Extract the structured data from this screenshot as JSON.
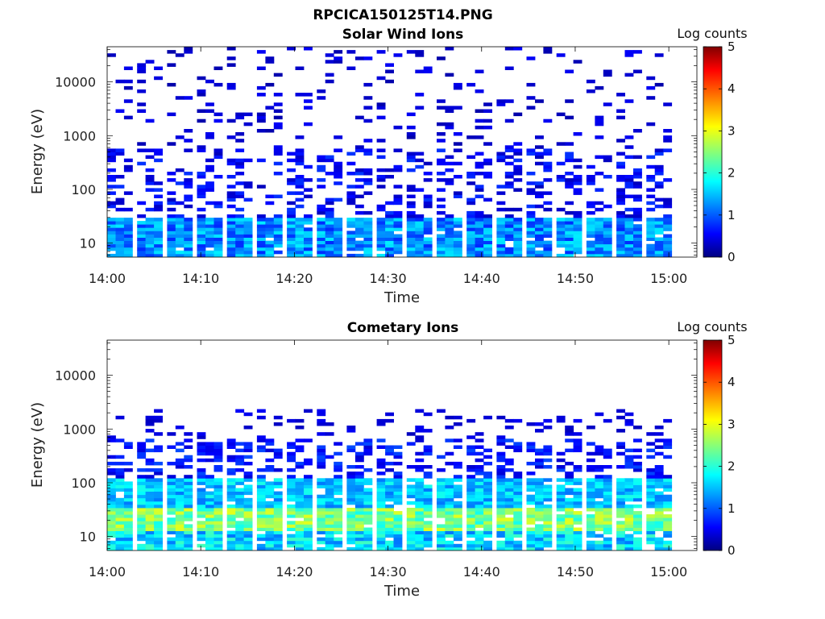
{
  "figure_title": "RPCICA150125T14.PNG",
  "chart_data": [
    {
      "id": "solar",
      "type": "heatmap",
      "title": "Solar Wind Ions",
      "xlabel": "Time",
      "ylabel": "Energy (eV)",
      "x_ticks": [
        "14:00",
        "14:10",
        "14:20",
        "14:30",
        "14:40",
        "14:50",
        "15:00"
      ],
      "x_range_minutes": [
        0,
        63
      ],
      "y_scale": "log",
      "y_range_eV": [
        5.5,
        45000
      ],
      "y_ticks": [
        "10",
        "100",
        "1000",
        "10000"
      ],
      "colorbar": {
        "label": "Log counts",
        "range": [
          0,
          5
        ],
        "ticks": [
          "0",
          "1",
          "2",
          "3",
          "4",
          "5"
        ],
        "colormap": "jet"
      },
      "note_sweeps": "energy sweeps every ~3.2 min from 14:00 to ~14:59; peak near 20 eV ~1.8 log counts",
      "low_energy_peak_log_counts": 1.8,
      "sweep_period_min": 3.2,
      "sweep_count": 19
    },
    {
      "id": "cometary",
      "type": "heatmap",
      "title": "Cometary Ions",
      "xlabel": "Time",
      "ylabel": "Energy (eV)",
      "x_ticks": [
        "14:00",
        "14:10",
        "14:20",
        "14:30",
        "14:40",
        "14:50",
        "15:00"
      ],
      "x_range_minutes": [
        0,
        63
      ],
      "y_scale": "log",
      "y_range_eV": [
        5.5,
        45000
      ],
      "y_ticks": [
        "10",
        "100",
        "1000",
        "10000"
      ],
      "colorbar": {
        "label": "Log counts",
        "range": [
          0,
          5
        ],
        "ticks": [
          "0",
          "1",
          "2",
          "3",
          "4",
          "5"
        ],
        "colormap": "jet"
      },
      "note_sweeps": "energy sweeps every ~3.2 min; peak near 15-25 eV ~3 log counts, counts up to ~2000 eV",
      "low_energy_peak_log_counts": 3.0,
      "sweep_period_min": 3.2,
      "sweep_count": 19
    }
  ]
}
